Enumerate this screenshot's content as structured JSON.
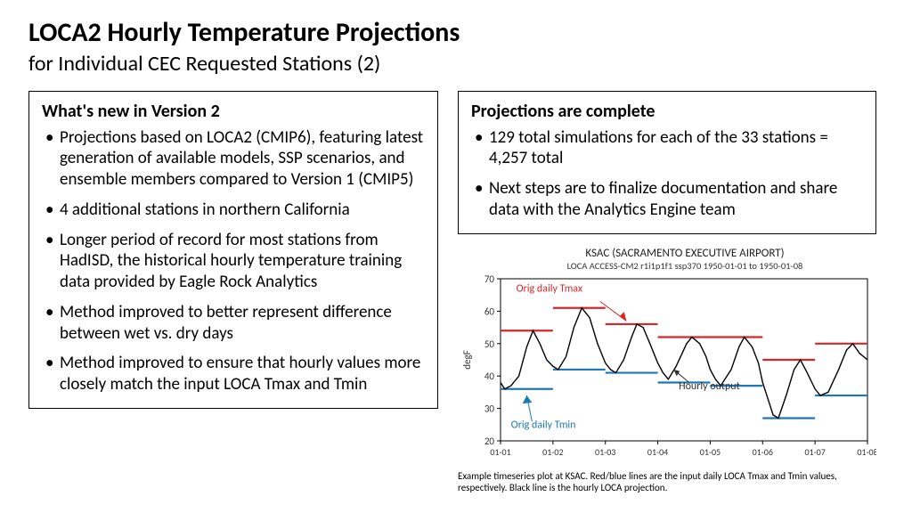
{
  "header": {
    "title": "LOCA2 Hourly Temperature Projections",
    "subtitle": "for Individual CEC Requested Stations (2)"
  },
  "left_box": {
    "heading": "What's new in Version 2",
    "items": [
      "Projections based on LOCA2 (CMIP6), featuring latest generation of available models, SSP scenarios, and ensemble members compared to Version 1 (CMIP5)",
      "4 additional stations in northern California",
      "Longer period of record for most stations from HadISD, the historical hourly temperature training data provided by Eagle Rock Analytics",
      "Method improved to better represent difference between wet vs. dry days",
      "Method improved to ensure that hourly values more closely match the input LOCA Tmax and Tmin"
    ]
  },
  "right_box": {
    "heading": "Projections are complete",
    "items": [
      "129 total simulations for each of the 33 stations = 4,257 total",
      "Next steps are to finalize documentation and share data with the Analytics Engine team"
    ]
  },
  "chart": {
    "title": "KSAC (SACRAMENTO EXECUTIVE AIRPORT)",
    "subtitle": "LOCA ACCESS-CM2 r1i1p1f1 ssp370 1950-01-01 to 1950-01-08",
    "ylabel": "degF",
    "ylim": [
      20,
      70
    ],
    "ytick_step": 10,
    "xticks": [
      "01-01",
      "01-02",
      "01-03",
      "01-04",
      "01-05",
      "01-06",
      "01-07",
      "01-08"
    ],
    "colors": {
      "hourly_line": "#000000",
      "tmax_line": "#d62728",
      "tmin_line": "#1f77b4",
      "axis": "#000000",
      "tick_text": "#333333",
      "bg": "#ffffff"
    },
    "annotations": {
      "tmax": {
        "text": "Orig daily Tmax",
        "color": "#d62728"
      },
      "tmin": {
        "text": "Orig daily Tmin",
        "color": "#1f77b4"
      },
      "hourly": {
        "text": "Hourly output",
        "color": "#333333"
      }
    },
    "tmax_segments": [
      [
        0,
        1,
        54
      ],
      [
        1,
        2,
        61
      ],
      [
        2,
        3,
        56
      ],
      [
        3,
        4,
        52
      ],
      [
        4,
        5,
        52
      ],
      [
        5,
        6,
        45
      ],
      [
        6,
        7,
        50
      ]
    ],
    "tmin_segments": [
      [
        0,
        1,
        36
      ],
      [
        1,
        2,
        42
      ],
      [
        2,
        3,
        41
      ],
      [
        3,
        4,
        38
      ],
      [
        4,
        5,
        37
      ],
      [
        5,
        6,
        27
      ],
      [
        6,
        7,
        34
      ]
    ],
    "hourly_xy": [
      [
        0.0,
        38
      ],
      [
        0.08,
        36
      ],
      [
        0.2,
        37
      ],
      [
        0.35,
        40
      ],
      [
        0.5,
        49
      ],
      [
        0.62,
        54
      ],
      [
        0.75,
        50
      ],
      [
        0.88,
        45
      ],
      [
        1.0,
        43
      ],
      [
        1.1,
        42
      ],
      [
        1.25,
        46
      ],
      [
        1.4,
        55
      ],
      [
        1.55,
        61
      ],
      [
        1.7,
        58
      ],
      [
        1.85,
        50
      ],
      [
        2.0,
        44
      ],
      [
        2.1,
        42
      ],
      [
        2.2,
        41
      ],
      [
        2.35,
        45
      ],
      [
        2.5,
        52
      ],
      [
        2.6,
        56
      ],
      [
        2.72,
        55
      ],
      [
        2.85,
        50
      ],
      [
        3.0,
        44
      ],
      [
        3.1,
        41
      ],
      [
        3.2,
        39
      ],
      [
        3.35,
        43
      ],
      [
        3.55,
        50
      ],
      [
        3.65,
        52
      ],
      [
        3.8,
        50
      ],
      [
        3.92,
        46
      ],
      [
        4.0,
        42
      ],
      [
        4.1,
        39
      ],
      [
        4.2,
        37
      ],
      [
        4.4,
        42
      ],
      [
        4.55,
        49
      ],
      [
        4.65,
        52
      ],
      [
        4.8,
        49
      ],
      [
        4.92,
        44
      ],
      [
        5.0,
        38
      ],
      [
        5.1,
        33
      ],
      [
        5.2,
        28
      ],
      [
        5.3,
        27
      ],
      [
        5.45,
        34
      ],
      [
        5.6,
        42
      ],
      [
        5.72,
        45
      ],
      [
        5.85,
        41
      ],
      [
        6.0,
        36
      ],
      [
        6.1,
        34
      ],
      [
        6.25,
        35
      ],
      [
        6.45,
        42
      ],
      [
        6.6,
        48
      ],
      [
        6.72,
        50
      ],
      [
        6.85,
        47
      ],
      [
        7.0,
        45
      ]
    ],
    "caption": "Example timeseries plot at KSAC. Red/blue lines are the input daily LOCA Tmax and Tmin values, respectively. Black line is the hourly LOCA projection."
  }
}
